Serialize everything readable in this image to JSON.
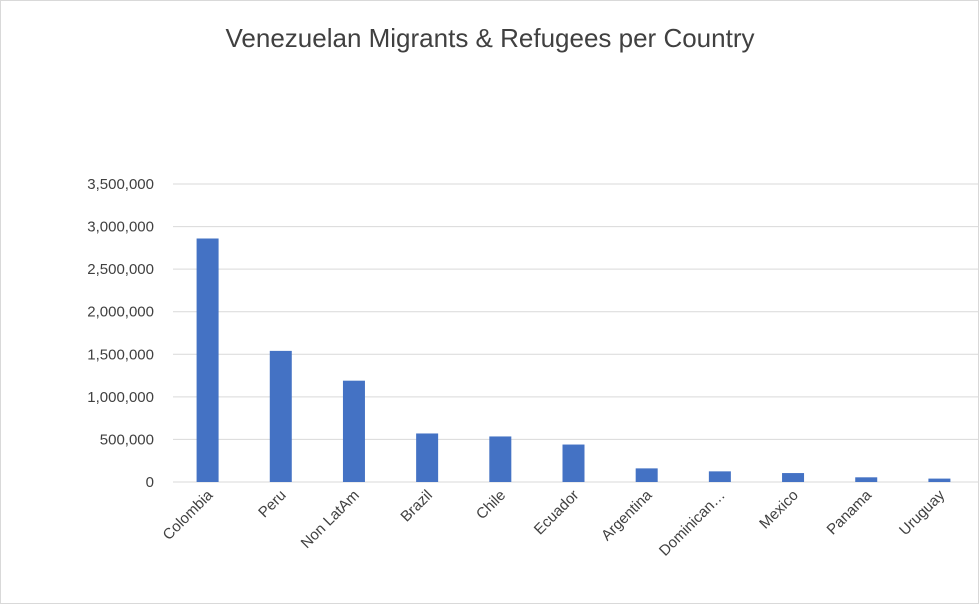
{
  "chart_data": {
    "type": "bar",
    "title": "Venezuelan Migrants & Refugees per Country",
    "xlabel": "",
    "ylabel": "",
    "categories": [
      "Colombia",
      "Peru",
      "Non LatAm",
      "Brazil",
      "Chile",
      "Ecuador",
      "Argentina",
      "Dominican…",
      "Mexico",
      "Panama",
      "Uruguay"
    ],
    "values": [
      2860000,
      1540000,
      1190000,
      570000,
      535000,
      440000,
      160000,
      125000,
      105000,
      55000,
      40000
    ],
    "ylim": [
      0,
      3500000
    ],
    "yticks": [
      0,
      500000,
      1000000,
      1500000,
      2000000,
      2500000,
      3000000,
      3500000
    ],
    "ytick_labels": [
      "0",
      "500,000",
      "1,000,000",
      "1,500,000",
      "2,000,000",
      "2,500,000",
      "3,000,000",
      "3,500,000"
    ],
    "grid": true,
    "legend": "none",
    "bar_color": "#4472c4"
  }
}
